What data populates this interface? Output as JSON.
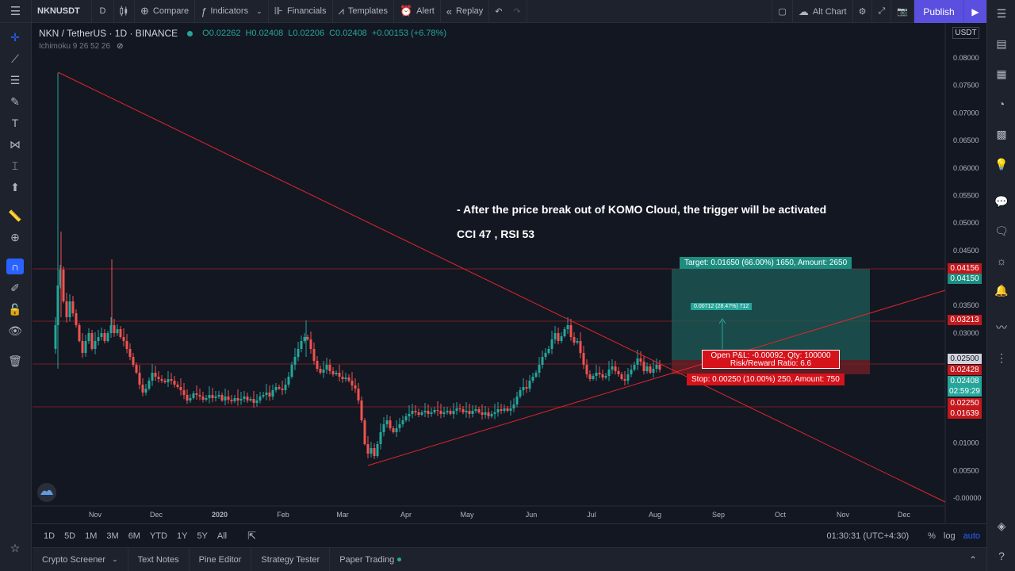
{
  "toolbar": {
    "symbol": "NKNUSDT",
    "interval": "D",
    "compare": "Compare",
    "indicators": "Indicators",
    "financials": "Financials",
    "templates": "Templates",
    "alert": "Alert",
    "replay": "Replay",
    "alt_chart": "Alt Chart",
    "publish": "Publish"
  },
  "legend": {
    "title": "NKN / TetherUS · 1D · BINANCE",
    "open": "O0.02262",
    "high": "H0.02408",
    "low": "L0.02206",
    "close": "C0.02408",
    "change": "+0.00153 (+6.78%)",
    "indicator": "Ichimoku 9 26 52 26"
  },
  "annotations": {
    "line1": "- After the price break out of KOMO Cloud, the trigger will be activated",
    "line2": "CCI 47 , RSI 53"
  },
  "position": {
    "target_label": "Target: 0.01650 (66.00%) 1650, Amount: 2650",
    "stop_label": "Stop: 0.00250 (10.00%) 250, Amount: 750",
    "pnl_label": "Open P&L: -0.00092, Qty: 100000",
    "rr_label": "Risk/Reward Ratio: 6.6",
    "mid_label": "0.00712 (28.47%) 712"
  },
  "price_axis": {
    "currency": "USDT",
    "ticks": [
      "0.08000",
      "0.07500",
      "0.07000",
      "0.06500",
      "0.06000",
      "0.05500",
      "0.05000",
      "0.04500",
      "0.04000",
      "0.03500",
      "0.03000",
      "0.02500",
      "0.02000",
      "0.01500",
      "0.01000",
      "0.00500",
      "-0.00000"
    ],
    "tags": {
      "t1": "0.04156",
      "t2": "0.04150",
      "t3": "0.03213",
      "t4": "0.02500",
      "t5": "0.02428",
      "t6": "0.02408",
      "t7": "02:59:29",
      "t8": "0.02250",
      "t9": "0.01639"
    }
  },
  "time_axis": [
    "Nov",
    "Dec",
    "2020",
    "Feb",
    "Mar",
    "Apr",
    "May",
    "Jun",
    "Jul",
    "Aug",
    "Sep",
    "Oct",
    "Nov",
    "Dec"
  ],
  "rangebar": {
    "ranges": [
      "1D",
      "5D",
      "1M",
      "3M",
      "6M",
      "YTD",
      "1Y",
      "5Y",
      "All"
    ],
    "clock": "01:30:31 (UTC+4:30)",
    "percent": "%",
    "log": "log",
    "auto": "auto"
  },
  "tabs": [
    "Crypto Screener",
    "Text Notes",
    "Pine Editor",
    "Strategy Tester",
    "Paper Trading"
  ],
  "colors": {
    "background": "#131722",
    "up": "#26a69a",
    "down": "#ef5350",
    "trendline": "#e0262b",
    "accent": "#2962ff",
    "publish": "#5b4fe0"
  }
}
